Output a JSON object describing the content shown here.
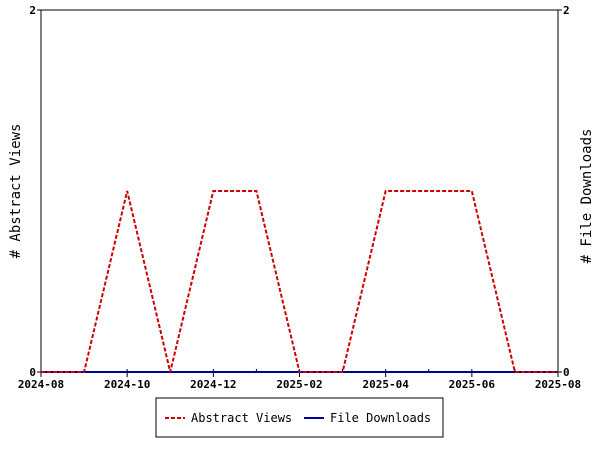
{
  "chart_data": {
    "type": "line",
    "x_axis": {
      "ticks": [
        "2024-08",
        "2024-10",
        "2024-12",
        "2025-02",
        "2025-04",
        "2025-06",
        "2025-08"
      ],
      "range": [
        "2024-08",
        "2025-08"
      ]
    },
    "y_left": {
      "label": "# Abstract Views",
      "ticks": [
        "0",
        "2"
      ],
      "range": [
        0,
        2
      ]
    },
    "y_right": {
      "label": "# File Downloads",
      "ticks": [
        "0",
        "2"
      ],
      "range": [
        0,
        2
      ]
    },
    "x": [
      "2024-08",
      "2024-09",
      "2024-10",
      "2024-11",
      "2024-12",
      "2025-01",
      "2025-02",
      "2025-03",
      "2025-04",
      "2025-05",
      "2025-06",
      "2025-07",
      "2025-08"
    ],
    "series": [
      {
        "name": "Abstract Views",
        "color": "#cc0000",
        "style": "dashed",
        "axis": "left",
        "values": [
          0,
          0,
          1,
          0,
          1,
          1,
          0,
          0,
          1,
          1,
          1,
          0,
          0
        ]
      },
      {
        "name": "File Downloads",
        "color": "#000099",
        "style": "solid",
        "axis": "right",
        "values": [
          0,
          0,
          0,
          0,
          0,
          0,
          0,
          0,
          0,
          0,
          0,
          0,
          0
        ]
      }
    ],
    "legend": {
      "position": "bottom"
    },
    "grid": false
  }
}
